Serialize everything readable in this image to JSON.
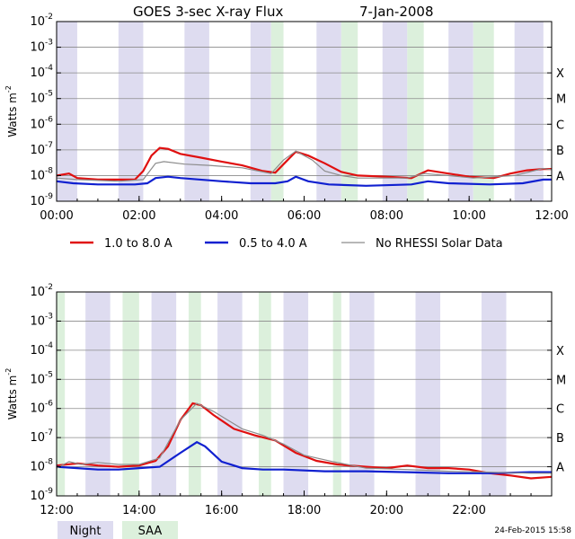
{
  "title": "GOES 3-sec X-ray Flux",
  "date": "7-Jan-2008",
  "footer_timestamp": "24-Feb-2015 15:58",
  "legend": {
    "series": [
      {
        "label": "1.0 to 8.0 A",
        "color": "#e01010"
      },
      {
        "label": "0.5 to 4.0 A",
        "color": "#1020d0"
      },
      {
        "label": "No RHESSI Solar Data",
        "color": "#8c8c8c"
      }
    ],
    "bands": [
      {
        "label": "Night",
        "color": "#dedcf0"
      },
      {
        "label": "SAA",
        "color": "#dcf0dc"
      }
    ]
  },
  "chart_data": [
    {
      "type": "line",
      "ylabel": "Watts m",
      "ylabel_superscript": "-2",
      "y_scale": "log",
      "ylim": [
        1e-09,
        0.01
      ],
      "ytick_exponents": [
        -9,
        -8,
        -7,
        -6,
        -5,
        -4,
        -3,
        -2
      ],
      "flare_classes": [
        "A",
        "B",
        "C",
        "M",
        "X"
      ],
      "xlim_hours": [
        0,
        12
      ],
      "xtick_labels": [
        "00:00",
        "02:00",
        "04:00",
        "06:00",
        "08:00",
        "10:00",
        "12:00"
      ],
      "night_bands_hours": [
        [
          0.0,
          0.5
        ],
        [
          1.5,
          2.1
        ],
        [
          3.1,
          3.7
        ],
        [
          4.7,
          5.2
        ],
        [
          6.3,
          6.9
        ],
        [
          7.9,
          8.5
        ],
        [
          9.5,
          10.1
        ],
        [
          11.1,
          11.8
        ]
      ],
      "saa_bands_hours": [
        [
          5.2,
          5.5
        ],
        [
          6.9,
          7.3
        ],
        [
          8.5,
          8.9
        ],
        [
          10.1,
          10.6
        ]
      ],
      "series": [
        {
          "name": "1.0 to 8.0 A",
          "points": [
            [
              0.0,
              1e-08
            ],
            [
              0.3,
              1.2e-08
            ],
            [
              0.5,
              8e-09
            ],
            [
              1.0,
              7e-09
            ],
            [
              1.5,
              7e-09
            ],
            [
              1.9,
              7e-09
            ],
            [
              2.1,
              1.5e-08
            ],
            [
              2.3,
              6e-08
            ],
            [
              2.5,
              1.2e-07
            ],
            [
              2.7,
              1.1e-07
            ],
            [
              3.0,
              7e-08
            ],
            [
              3.5,
              5e-08
            ],
            [
              4.0,
              3.5e-08
            ],
            [
              4.5,
              2.5e-08
            ],
            [
              5.0,
              1.5e-08
            ],
            [
              5.3,
              1.3e-08
            ],
            [
              5.6,
              4e-08
            ],
            [
              5.8,
              8.5e-08
            ],
            [
              6.1,
              6e-08
            ],
            [
              6.5,
              3e-08
            ],
            [
              6.9,
              1.4e-08
            ],
            [
              7.3,
              1e-08
            ],
            [
              8.0,
              9e-09
            ],
            [
              8.6,
              8e-09
            ],
            [
              9.0,
              1.6e-08
            ],
            [
              9.5,
              1.2e-08
            ],
            [
              10.0,
              9e-09
            ],
            [
              10.6,
              8e-09
            ],
            [
              11.0,
              1.2e-08
            ],
            [
              11.4,
              1.6e-08
            ],
            [
              11.8,
              1.8e-08
            ],
            [
              12.0,
              1.8e-08
            ]
          ]
        },
        {
          "name": "0.5 to 4.0 A",
          "points": [
            [
              0.0,
              6e-09
            ],
            [
              0.4,
              5e-09
            ],
            [
              1.0,
              4.5e-09
            ],
            [
              1.9,
              4.5e-09
            ],
            [
              2.2,
              5e-09
            ],
            [
              2.4,
              8e-09
            ],
            [
              2.7,
              9e-09
            ],
            [
              3.0,
              8e-09
            ],
            [
              4.0,
              6e-09
            ],
            [
              4.7,
              5e-09
            ],
            [
              5.3,
              5e-09
            ],
            [
              5.6,
              6e-09
            ],
            [
              5.8,
              9e-09
            ],
            [
              6.1,
              6e-09
            ],
            [
              6.6,
              4.5e-09
            ],
            [
              7.5,
              4e-09
            ],
            [
              8.6,
              4.5e-09
            ],
            [
              9.0,
              6e-09
            ],
            [
              9.5,
              5e-09
            ],
            [
              10.5,
              4.5e-09
            ],
            [
              11.3,
              5e-09
            ],
            [
              11.8,
              7e-09
            ],
            [
              12.0,
              7e-09
            ]
          ]
        },
        {
          "name": "No RHESSI Solar Data",
          "points": [
            [
              0.0,
              8e-09
            ],
            [
              0.5,
              7e-09
            ],
            [
              1.5,
              6e-09
            ],
            [
              2.1,
              7e-09
            ],
            [
              2.4,
              3e-08
            ],
            [
              2.6,
              3.5e-08
            ],
            [
              3.1,
              2.8e-08
            ],
            [
              3.7,
              2.5e-08
            ],
            [
              4.5,
              2e-08
            ],
            [
              5.2,
              1.2e-08
            ],
            [
              5.5,
              4e-08
            ],
            [
              5.8,
              9e-08
            ],
            [
              6.2,
              4e-08
            ],
            [
              6.5,
              1.5e-08
            ],
            [
              6.9,
              1e-08
            ],
            [
              7.3,
              8e-09
            ],
            [
              8.5,
              8e-09
            ],
            [
              8.9,
              1.2e-08
            ],
            [
              9.5,
              1e-08
            ],
            [
              10.1,
              8e-09
            ],
            [
              11.1,
              1e-08
            ],
            [
              11.8,
              1.9e-08
            ],
            [
              12.0,
              1.7e-08
            ]
          ]
        }
      ]
    },
    {
      "type": "line",
      "ylabel": "Watts m",
      "ylabel_superscript": "-2",
      "y_scale": "log",
      "ylim": [
        1e-09,
        0.01
      ],
      "ytick_exponents": [
        -9,
        -8,
        -7,
        -6,
        -5,
        -4,
        -3,
        -2
      ],
      "flare_classes": [
        "A",
        "B",
        "C",
        "M",
        "X"
      ],
      "xlim_hours": [
        12,
        24
      ],
      "xtick_labels": [
        "12:00",
        "14:00",
        "16:00",
        "18:00",
        "20:00",
        "22:00"
      ],
      "night_bands_hours": [
        [
          12.7,
          13.3
        ],
        [
          14.3,
          14.9
        ],
        [
          15.9,
          16.5
        ],
        [
          17.5,
          18.1
        ],
        [
          19.1,
          19.7
        ],
        [
          20.7,
          21.3
        ],
        [
          22.3,
          22.9
        ]
      ],
      "saa_bands_hours": [
        [
          12.0,
          12.2
        ],
        [
          13.6,
          14.0
        ],
        [
          15.2,
          15.5
        ],
        [
          16.9,
          17.2
        ],
        [
          18.7,
          18.9
        ]
      ],
      "series": [
        {
          "name": "1.0 to 8.0 A",
          "points": [
            [
              12.0,
              1.1e-08
            ],
            [
              12.5,
              1.3e-08
            ],
            [
              13.0,
              1.1e-08
            ],
            [
              13.5,
              1e-08
            ],
            [
              14.0,
              1.1e-08
            ],
            [
              14.4,
              1.6e-08
            ],
            [
              14.7,
              5e-08
            ],
            [
              15.0,
              4e-07
            ],
            [
              15.3,
              1.5e-06
            ],
            [
              15.5,
              1.3e-06
            ],
            [
              15.8,
              6e-07
            ],
            [
              16.3,
              2e-07
            ],
            [
              16.8,
              1.2e-07
            ],
            [
              17.3,
              8e-08
            ],
            [
              17.8,
              3e-08
            ],
            [
              18.3,
              1.6e-08
            ],
            [
              18.8,
              1.2e-08
            ],
            [
              19.5,
              1e-08
            ],
            [
              20.0,
              9e-09
            ],
            [
              20.5,
              1.1e-08
            ],
            [
              21.0,
              9e-09
            ],
            [
              21.5,
              9e-09
            ],
            [
              22.0,
              8e-09
            ],
            [
              22.5,
              6e-09
            ],
            [
              23.0,
              5e-09
            ],
            [
              23.5,
              4e-09
            ],
            [
              24.0,
              4.5e-09
            ]
          ]
        },
        {
          "name": "0.5 to 4.0 A",
          "points": [
            [
              12.0,
              1e-08
            ],
            [
              12.5,
              9e-09
            ],
            [
              13.0,
              8e-09
            ],
            [
              13.5,
              8e-09
            ],
            [
              14.0,
              9e-09
            ],
            [
              14.5,
              1e-08
            ],
            [
              15.0,
              3e-08
            ],
            [
              15.4,
              7e-08
            ],
            [
              15.6,
              5e-08
            ],
            [
              16.0,
              1.5e-08
            ],
            [
              16.5,
              9e-09
            ],
            [
              17.0,
              8e-09
            ],
            [
              17.5,
              8e-09
            ],
            [
              18.5,
              7e-09
            ],
            [
              19.5,
              7e-09
            ],
            [
              20.5,
              6.5e-09
            ],
            [
              21.5,
              6e-09
            ],
            [
              22.5,
              6e-09
            ],
            [
              23.5,
              6.5e-09
            ],
            [
              24.0,
              6.5e-09
            ]
          ]
        },
        {
          "name": "No RHESSI Solar Data",
          "points": [
            [
              12.0,
              9e-09
            ],
            [
              12.3,
              1.5e-08
            ],
            [
              12.6,
              1.2e-08
            ],
            [
              13.0,
              1.4e-08
            ],
            [
              13.5,
              1.2e-08
            ],
            [
              14.0,
              1.2e-08
            ],
            [
              14.5,
              2e-08
            ],
            [
              15.0,
              4e-07
            ],
            [
              15.4,
              1.5e-06
            ],
            [
              15.8,
              8e-07
            ],
            [
              16.5,
              2e-07
            ],
            [
              17.0,
              1.2e-07
            ],
            [
              17.5,
              6e-08
            ],
            [
              18.0,
              2.5e-08
            ],
            [
              18.7,
              1.5e-08
            ],
            [
              19.5,
              9e-09
            ],
            [
              20.5,
              8e-09
            ],
            [
              21.5,
              7e-09
            ],
            [
              22.5,
              6.5e-09
            ],
            [
              23.5,
              6e-09
            ],
            [
              24.0,
              6e-09
            ]
          ]
        }
      ]
    }
  ]
}
